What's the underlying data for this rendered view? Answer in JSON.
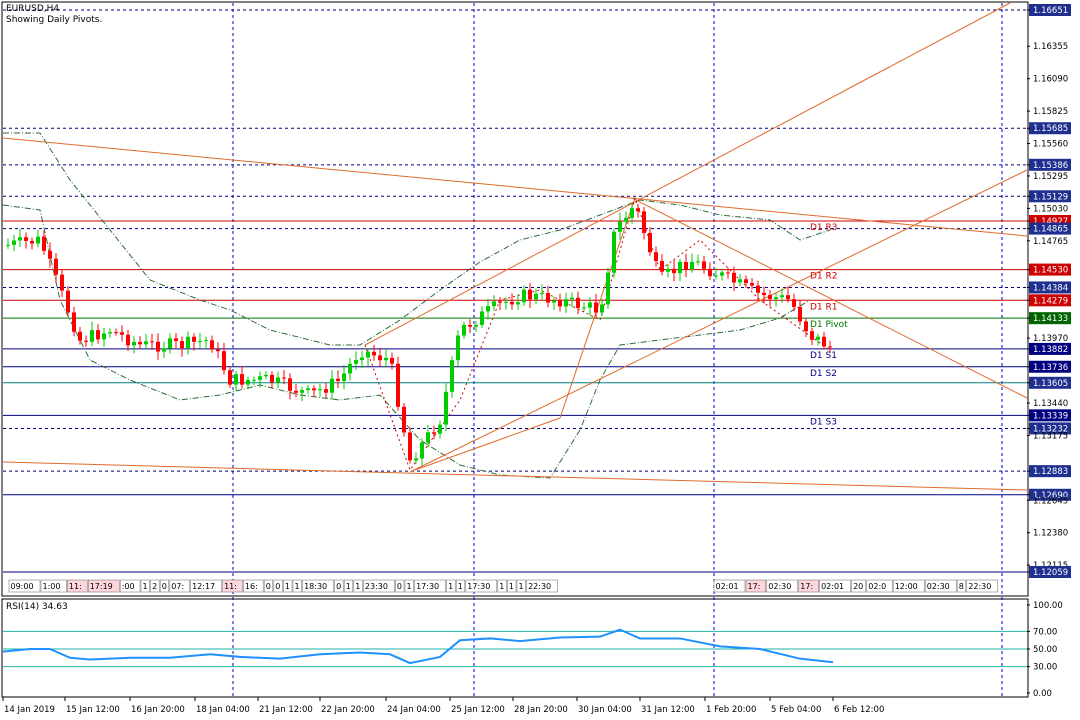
{
  "window": {
    "symbol_title": "EURUSD,H4",
    "subtitle": "Showing Daily Pivots."
  },
  "rsi": {
    "label": "RSI(14) 34.63",
    "levels": [
      "100.00",
      "70.00",
      "50.00",
      "30.00",
      "0.00"
    ]
  },
  "price_labels": [
    {
      "text": "1.16651",
      "kind": "blue_box"
    },
    {
      "text": "1.16355",
      "kind": "plain"
    },
    {
      "text": "1.16090",
      "kind": "plain"
    },
    {
      "text": "1.15825",
      "kind": "plain"
    },
    {
      "text": "1.15685",
      "kind": "blue_box"
    },
    {
      "text": "1.15560",
      "kind": "plain"
    },
    {
      "text": "1.15386",
      "kind": "blue_box"
    },
    {
      "text": "1.15295",
      "kind": "plain"
    },
    {
      "text": "1.15129",
      "kind": "blue_box"
    },
    {
      "text": "1.15030",
      "kind": "plain"
    },
    {
      "text": "1.14927",
      "kind": "red_box"
    },
    {
      "text": "1.14865",
      "kind": "blue_box"
    },
    {
      "text": "1.14765",
      "kind": "plain"
    },
    {
      "text": "1.14530",
      "kind": "red_box"
    },
    {
      "text": "1.14384",
      "kind": "blue_box"
    },
    {
      "text": "1.14279",
      "kind": "red_box"
    },
    {
      "text": "1.14133",
      "kind": "green_box"
    },
    {
      "text": "1.13970",
      "kind": "plain"
    },
    {
      "text": "1.13882",
      "kind": "navy_box"
    },
    {
      "text": "1.13736",
      "kind": "navy_box"
    },
    {
      "text": "1.13605",
      "kind": "blue_box"
    },
    {
      "text": "1.13440",
      "kind": "plain"
    },
    {
      "text": "1.13339",
      "kind": "navy_box"
    },
    {
      "text": "1.13232",
      "kind": "blue_box"
    },
    {
      "text": "1.13175",
      "kind": "plain"
    },
    {
      "text": "1.12883",
      "kind": "blue_box"
    },
    {
      "text": "1.12690",
      "kind": "blue_box"
    },
    {
      "text": "1.12645",
      "kind": "plain"
    },
    {
      "text": "1.12380",
      "kind": "plain"
    },
    {
      "text": "1.12115",
      "kind": "plain"
    },
    {
      "text": "1.12059",
      "kind": "blue_box"
    }
  ],
  "pivot_labels": [
    "D1 R3",
    "D1 R2",
    "D1 R1",
    "D1 Pivot",
    "D1 S1",
    "D1 S2",
    "D1 S3"
  ],
  "time_axis": [
    "14 Jan 2019",
    "15 Jan 12:00",
    "16 Jan 20:00",
    "18 Jan 04:00",
    "21 Jan 12:00",
    "22 Jan 20:00",
    "24 Jan 04:00",
    "25 Jan 12:00",
    "28 Jan 20:00",
    "30 Jan 04:00",
    "31 Jan 12:00",
    "1 Feb 20:00",
    "5 Feb 04:00",
    "6 Feb 12:00"
  ],
  "time_strip": [
    "09:00",
    "1:00",
    "11:",
    "17:19",
    ":00",
    "1",
    "2",
    "0",
    "07:",
    "12:17",
    "11:",
    "16:",
    "0",
    "0",
    "1",
    "1",
    "18:30",
    "0",
    "1",
    "1",
    "23:30",
    "0",
    "1",
    "17:30",
    "1",
    "1",
    "17:30",
    "1",
    "1",
    "1",
    "22:30",
    "02:01",
    "17:",
    "02:30",
    "17:",
    "02:01",
    "20",
    "02:0",
    "12:00",
    "02:30",
    "8",
    "22:30"
  ],
  "colors": {
    "bull": "#00cc00",
    "bear": "#ff0000",
    "trendline": "#e06a2a",
    "resistance": "#cc0000",
    "support": "#000080",
    "pivot": "#007700",
    "grid": "#0000cc",
    "rsi_line": "#1e90ff",
    "rsi_level": "#20b2aa"
  }
}
